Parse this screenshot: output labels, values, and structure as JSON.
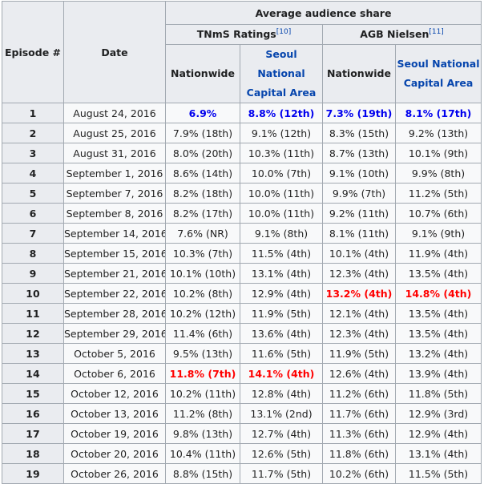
{
  "table": {
    "header": {
      "episode": "Episode #",
      "date": "Date",
      "avg_share": "Average audience share",
      "tnms": "TNmS Ratings",
      "tnms_ref": "[10]",
      "agb": "AGB Nielsen",
      "agb_ref": "[11]",
      "nationwide_1": "Nationwide",
      "seoul_1": "Seoul National Capital Area",
      "nationwide_2": "Nationwide",
      "seoul_2": "Seoul National Capital Area"
    },
    "highlight_colors": {
      "highest": "#0000ee",
      "lowest": "#ff0000"
    },
    "rows": [
      {
        "ep": "1",
        "date": "August 24, 2016",
        "tn": "6.9%",
        "ts": "8.8% (12th)",
        "an": "7.3% (19th)",
        "as": "8.1% (17th)",
        "hl": [
          "b",
          "b",
          "b",
          "b"
        ]
      },
      {
        "ep": "2",
        "date": "August 25, 2016",
        "tn": "7.9% (18th)",
        "ts": "9.1% (12th)",
        "an": "8.3% (15th)",
        "as": "9.2% (13th)",
        "hl": [
          "",
          "",
          "",
          ""
        ]
      },
      {
        "ep": "3",
        "date": "August 31, 2016",
        "tn": "8.0% (20th)",
        "ts": "10.3% (11th)",
        "an": "8.7% (13th)",
        "as": "10.1% (9th)",
        "hl": [
          "",
          "",
          "",
          ""
        ]
      },
      {
        "ep": "4",
        "date": "September 1, 2016",
        "tn": "8.6% (14th)",
        "ts": "10.0% (7th)",
        "an": "9.1% (10th)",
        "as": "9.9% (8th)",
        "hl": [
          "",
          "",
          "",
          ""
        ]
      },
      {
        "ep": "5",
        "date": "September 7, 2016",
        "tn": "8.2% (18th)",
        "ts": "10.0% (11th)",
        "an": "9.9% (7th)",
        "as": "11.2% (5th)",
        "hl": [
          "",
          "",
          "",
          ""
        ]
      },
      {
        "ep": "6",
        "date": "September 8, 2016",
        "tn": "8.2% (17th)",
        "ts": "10.0% (11th)",
        "an": "9.2% (11th)",
        "as": "10.7% (6th)",
        "hl": [
          "",
          "",
          "",
          ""
        ]
      },
      {
        "ep": "7",
        "date": "September 14, 2016",
        "tn": "7.6% (NR)",
        "ts": "9.1% (8th)",
        "an": "8.1% (11th)",
        "as": "9.1% (9th)",
        "hl": [
          "",
          "",
          "",
          ""
        ]
      },
      {
        "ep": "8",
        "date": "September 15, 2016",
        "tn": "10.3% (7th)",
        "ts": "11.5% (4th)",
        "an": "10.1% (4th)",
        "as": "11.9% (4th)",
        "hl": [
          "",
          "",
          "",
          ""
        ]
      },
      {
        "ep": "9",
        "date": "September 21, 2016",
        "tn": "10.1% (10th)",
        "ts": "13.1% (4th)",
        "an": "12.3% (4th)",
        "as": "13.5% (4th)",
        "hl": [
          "",
          "",
          "",
          ""
        ]
      },
      {
        "ep": "10",
        "date": "September 22, 2016",
        "tn": "10.2% (8th)",
        "ts": "12.9% (4th)",
        "an": "13.2% (4th)",
        "as": "14.8% (4th)",
        "hl": [
          "",
          "",
          "r",
          "r"
        ]
      },
      {
        "ep": "11",
        "date": "September 28, 2016",
        "tn": "10.2% (12th)",
        "ts": "11.9% (5th)",
        "an": "12.1% (4th)",
        "as": "13.5% (4th)",
        "hl": [
          "",
          "",
          "",
          ""
        ]
      },
      {
        "ep": "12",
        "date": "September 29, 2016",
        "tn": "11.4% (6th)",
        "ts": "13.6% (4th)",
        "an": "12.3% (4th)",
        "as": "13.5% (4th)",
        "hl": [
          "",
          "",
          "",
          ""
        ]
      },
      {
        "ep": "13",
        "date": "October 5, 2016",
        "tn": "9.5% (13th)",
        "ts": "11.6% (5th)",
        "an": "11.9% (5th)",
        "as": "13.2% (4th)",
        "hl": [
          "",
          "",
          "",
          ""
        ]
      },
      {
        "ep": "14",
        "date": "October 6, 2016",
        "tn": "11.8% (7th)",
        "ts": "14.1% (4th)",
        "an": "12.6% (4th)",
        "as": "13.9% (4th)",
        "hl": [
          "r",
          "r",
          "",
          ""
        ]
      },
      {
        "ep": "15",
        "date": "October 12, 2016",
        "tn": "10.2% (11th)",
        "ts": "12.8% (4th)",
        "an": "11.2% (6th)",
        "as": "11.8% (5th)",
        "hl": [
          "",
          "",
          "",
          ""
        ]
      },
      {
        "ep": "16",
        "date": "October 13, 2016",
        "tn": "11.2% (8th)",
        "ts": "13.1% (2nd)",
        "an": "11.7% (6th)",
        "as": "12.9% (3rd)",
        "hl": [
          "",
          "",
          "",
          ""
        ]
      },
      {
        "ep": "17",
        "date": "October 19, 2016",
        "tn": "9.8% (13th)",
        "ts": "12.7% (4th)",
        "an": "11.3% (6th)",
        "as": "12.9% (4th)",
        "hl": [
          "",
          "",
          "",
          ""
        ]
      },
      {
        "ep": "18",
        "date": "October 20, 2016",
        "tn": "10.4% (11th)",
        "ts": "12.6% (5th)",
        "an": "11.8% (6th)",
        "as": "13.1% (4th)",
        "hl": [
          "",
          "",
          "",
          ""
        ]
      },
      {
        "ep": "19",
        "date": "October 26, 2016",
        "tn": "8.8% (15th)",
        "ts": "11.7% (5th)",
        "an": "10.2% (6th)",
        "as": "11.5% (5th)",
        "hl": [
          "",
          "",
          "",
          ""
        ]
      }
    ]
  }
}
